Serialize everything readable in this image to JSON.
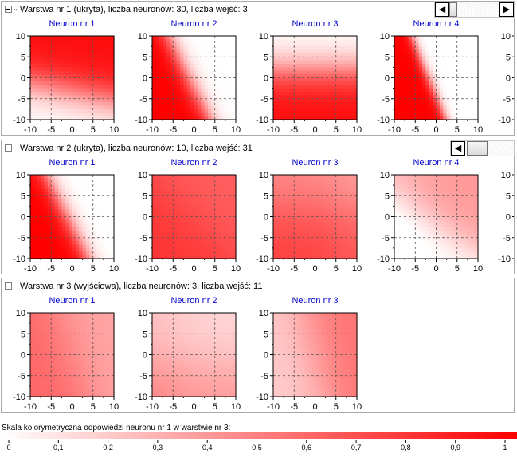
{
  "layers": [
    {
      "header": "Warstwa nr 1 (ukryta), liczba neuronów: 30, liczba wejść: 3",
      "neurons": [
        {
          "title": "Neuron nr 1",
          "pattern": "upper"
        },
        {
          "title": "Neuron nr 2",
          "pattern": "diag-left"
        },
        {
          "title": "Neuron nr 3",
          "pattern": "lower"
        },
        {
          "title": "Neuron nr 4",
          "pattern": "diag-left-narrow"
        }
      ]
    },
    {
      "header": "Warstwa nr 2 (ukryta), liczba neuronów: 10, liczba wejść: 31",
      "neurons": [
        {
          "title": "Neuron nr 1",
          "pattern": "diag-left"
        },
        {
          "title": "Neuron nr 2",
          "pattern": "soft-full"
        },
        {
          "title": "Neuron nr 3",
          "pattern": "soft-lower"
        },
        {
          "title": "Neuron nr 4",
          "pattern": "faint-upper-right"
        }
      ]
    },
    {
      "header": "Warstwa nr 3 (wyjściowa), liczba neuronów: 3, liczba wejść: 11",
      "neurons": [
        {
          "title": "Neuron nr 1",
          "pattern": "faint-left"
        },
        {
          "title": "Neuron nr 2",
          "pattern": "faint-lower"
        },
        {
          "title": "Neuron nr 3",
          "pattern": "faint-right"
        }
      ]
    }
  ],
  "axis": {
    "x_ticks": [
      "-10",
      "-5",
      "0",
      "5",
      "10"
    ],
    "y_ticks": [
      "10",
      "5",
      "0",
      "-5",
      "-10"
    ]
  },
  "scale": {
    "title": "Skala kolorymetryczna odpowiedzi neuronu nr 1 w warstwie nr 3:",
    "ticks": [
      "0",
      "0,1",
      "0,2",
      "0,3",
      "0,4",
      "0,5",
      "0,6",
      "0,7",
      "0,8",
      "0,9",
      "1"
    ]
  },
  "colors": {
    "accent": "#ff0000",
    "title_blue": "#0000cc",
    "border": "#a9a9a9"
  }
}
